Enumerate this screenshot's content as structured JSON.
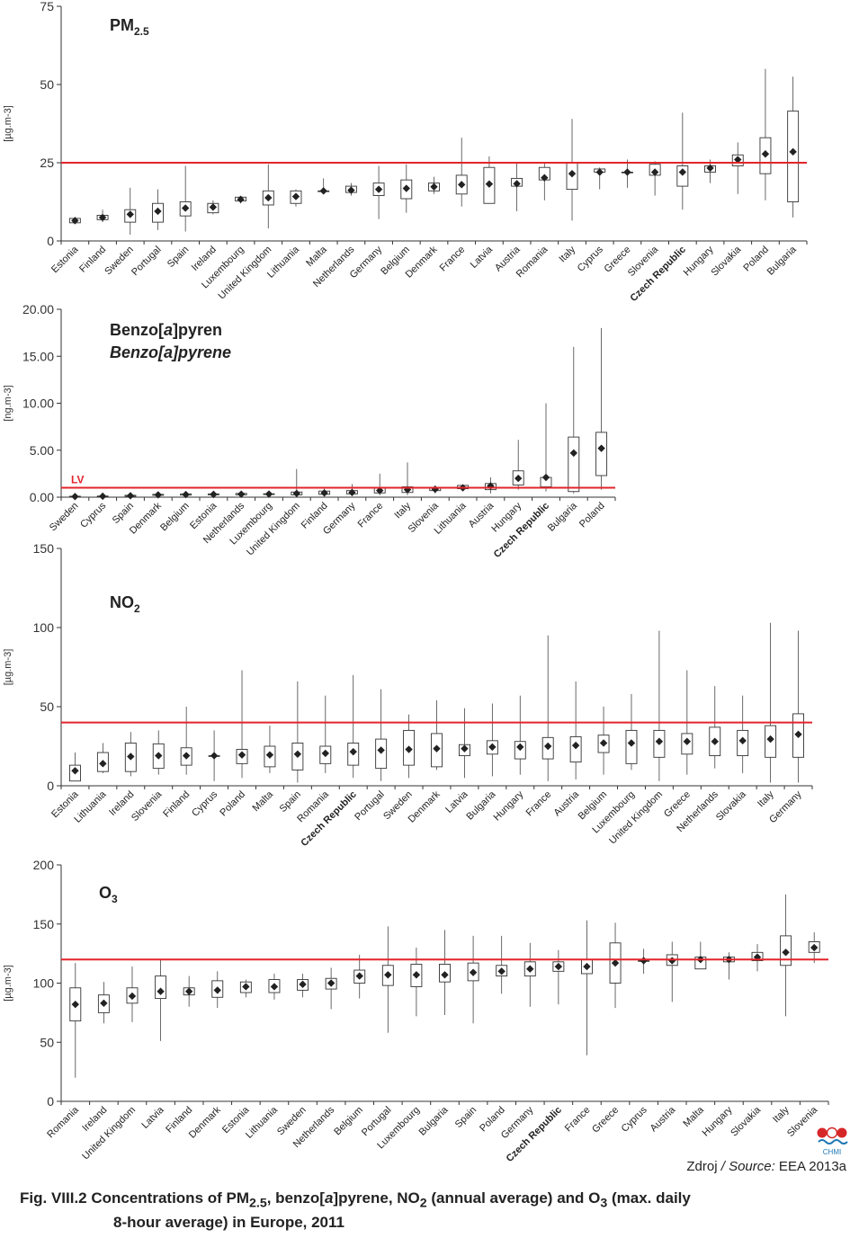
{
  "source": {
    "prefix": "Zdroj",
    "italic": " / Source:",
    "text": " EEA 2013a"
  },
  "caption": {
    "p1": "Fig. VIII.2  Concentrations of PM",
    "p1sub": "2.5",
    "p2": ", benzo[",
    "p2it": "a",
    "p3": "]pyrene, NO",
    "p3sub": "2",
    "p4": " (annual average) and O",
    "p4sub": "3",
    "p5": " (max. daily",
    "line2": "8-hour average) in Europe, 2011"
  },
  "logo": {
    "text": "CHMI",
    "colors": [
      "#d62728",
      "#1f77b4"
    ]
  },
  "limit_color": "#e3242b",
  "chart_data": [
    {
      "type": "box",
      "title": {
        "main": "PM",
        "sub": "2.5"
      },
      "ylabel": "[µg.m-3]",
      "ylim": [
        0,
        75
      ],
      "yticks": [
        0,
        25,
        50,
        75
      ],
      "tick_format": "int",
      "limit_value": 25,
      "highlight": "Czech Republic",
      "boxes": [
        {
          "c": "Estonia",
          "min": 5.5,
          "q1": 5.8,
          "mean": 6.5,
          "q3": 7.2,
          "max": 7.5
        },
        {
          "c": "Finland",
          "min": 6,
          "q1": 6.8,
          "mean": 7.5,
          "q3": 8.2,
          "max": 10
        },
        {
          "c": "Sweden",
          "min": 2,
          "q1": 6,
          "mean": 8.5,
          "q3": 10,
          "max": 17
        },
        {
          "c": "Portugal",
          "min": 3.5,
          "q1": 6,
          "mean": 9.5,
          "q3": 12,
          "max": 16.5
        },
        {
          "c": "Spain",
          "min": 3,
          "q1": 8,
          "mean": 10.5,
          "q3": 12.5,
          "max": 24
        },
        {
          "c": "Ireland",
          "min": 8.5,
          "q1": 9,
          "mean": 10.8,
          "q3": 12,
          "max": 13
        },
        {
          "c": "Luxembourg",
          "min": 12,
          "q1": 12.8,
          "mean": 13.3,
          "q3": 14,
          "max": 14.3
        },
        {
          "c": "United Kingdom",
          "min": 4,
          "q1": 11.5,
          "mean": 13.8,
          "q3": 16,
          "max": 24.5
        },
        {
          "c": "Lithuania",
          "min": 11,
          "q1": 12,
          "mean": 14.2,
          "q3": 16,
          "max": 16.5
        },
        {
          "c": "Malta",
          "min": 16,
          "q1": 16,
          "mean": 16,
          "q3": 16,
          "max": 20
        },
        {
          "c": "Netherlands",
          "min": 14.5,
          "q1": 15.5,
          "mean": 16.2,
          "q3": 17.5,
          "max": 18.5
        },
        {
          "c": "Germany",
          "min": 7,
          "q1": 14.5,
          "mean": 16.5,
          "q3": 18.5,
          "max": 24
        },
        {
          "c": "Belgium",
          "min": 9,
          "q1": 13.5,
          "mean": 16.8,
          "q3": 19.5,
          "max": 24.5
        },
        {
          "c": "Denmark",
          "min": 15,
          "q1": 16,
          "mean": 17.3,
          "q3": 18.5,
          "max": 20.5
        },
        {
          "c": "France",
          "min": 11,
          "q1": 15,
          "mean": 18,
          "q3": 21,
          "max": 33
        },
        {
          "c": "Latvia",
          "min": 12,
          "q1": 12,
          "mean": 18.2,
          "q3": 23.5,
          "max": 27
        },
        {
          "c": "Austria",
          "min": 9.5,
          "q1": 17.5,
          "mean": 18.3,
          "q3": 20,
          "max": 25
        },
        {
          "c": "Romania",
          "min": 13,
          "q1": 19.5,
          "mean": 20.2,
          "q3": 23.5,
          "max": 25
        },
        {
          "c": "Italy",
          "min": 6.5,
          "q1": 16.5,
          "mean": 21.5,
          "q3": 25,
          "max": 39
        },
        {
          "c": "Cyprus",
          "min": 16.5,
          "q1": 22,
          "mean": 22,
          "q3": 23,
          "max": 23.5
        },
        {
          "c": "Greece",
          "min": 17,
          "q1": 22,
          "mean": 22,
          "q3": 22,
          "max": 26
        },
        {
          "c": "Slovenia",
          "min": 14.5,
          "q1": 21,
          "mean": 22,
          "q3": 24.5,
          "max": 25.5
        },
        {
          "c": "Czech Republic",
          "min": 10,
          "q1": 17.5,
          "mean": 22,
          "q3": 24,
          "max": 41
        },
        {
          "c": "Hungary",
          "min": 18.5,
          "q1": 22,
          "mean": 23.3,
          "q3": 24,
          "max": 26
        },
        {
          "c": "Slovakia",
          "min": 15,
          "q1": 24,
          "mean": 26,
          "q3": 27.5,
          "max": 31.5
        },
        {
          "c": "Poland",
          "min": 13,
          "q1": 21.5,
          "mean": 27.8,
          "q3": 33,
          "max": 55
        },
        {
          "c": "Bulgaria",
          "min": 7.5,
          "q1": 12.5,
          "mean": 28.5,
          "q3": 41.5,
          "max": 52.5
        }
      ]
    },
    {
      "type": "box",
      "title": {
        "main": "Benzo[",
        "mainIt": "a",
        "mainEnd": "]pyren",
        "subtitle": "Benzo[a]pyrene"
      },
      "ylabel": "[ng.m-3]",
      "ylim": [
        0,
        20
      ],
      "yticks": [
        0,
        5,
        10,
        15,
        20
      ],
      "tick_format": "2dp",
      "limit_value": 1,
      "limit_label": "LV",
      "highlight": "Czech Republic",
      "boxes": [
        {
          "c": "Sweden",
          "min": 0.05,
          "q1": 0.05,
          "mean": 0.07,
          "q3": 0.1,
          "max": 0.1
        },
        {
          "c": "Cyprus",
          "min": 0.05,
          "q1": 0.08,
          "mean": 0.1,
          "q3": 0.12,
          "max": 0.15
        },
        {
          "c": "Spain",
          "min": 0.05,
          "q1": 0.1,
          "mean": 0.15,
          "q3": 0.2,
          "max": 0.3
        },
        {
          "c": "Denmark",
          "min": 0.15,
          "q1": 0.2,
          "mean": 0.25,
          "q3": 0.3,
          "max": 0.35
        },
        {
          "c": "Belgium",
          "min": 0.15,
          "q1": 0.22,
          "mean": 0.28,
          "q3": 0.35,
          "max": 0.45
        },
        {
          "c": "Estonia",
          "min": 0.2,
          "q1": 0.25,
          "mean": 0.3,
          "q3": 0.35,
          "max": 0.4
        },
        {
          "c": "Netherlands",
          "min": 0.15,
          "q1": 0.25,
          "mean": 0.32,
          "q3": 0.4,
          "max": 0.65
        },
        {
          "c": "Luxembourg",
          "min": 0.25,
          "q1": 0.3,
          "mean": 0.33,
          "q3": 0.36,
          "max": 0.4
        },
        {
          "c": "United Kingdom",
          "min": 0.1,
          "q1": 0.25,
          "mean": 0.4,
          "q3": 0.55,
          "max": 3
        },
        {
          "c": "Finland",
          "min": 0.15,
          "q1": 0.3,
          "mean": 0.45,
          "q3": 0.65,
          "max": 0.9
        },
        {
          "c": "Germany",
          "min": 0.15,
          "q1": 0.35,
          "mean": 0.5,
          "q3": 0.7,
          "max": 1.4
        },
        {
          "c": "France",
          "min": 0.2,
          "q1": 0.45,
          "mean": 0.7,
          "q3": 1.05,
          "max": 2.5
        },
        {
          "c": "Italy",
          "min": 0.2,
          "q1": 0.5,
          "mean": 0.8,
          "q3": 1.1,
          "max": 3.7
        },
        {
          "c": "Slovenia",
          "min": 0.4,
          "q1": 0.7,
          "mean": 0.85,
          "q3": 1,
          "max": 1.2
        },
        {
          "c": "Lithuania",
          "min": 0.8,
          "q1": 0.9,
          "mean": 1,
          "q3": 1.25,
          "max": 1.3
        },
        {
          "c": "Austria",
          "min": 0.4,
          "q1": 0.8,
          "mean": 1.2,
          "q3": 1.45,
          "max": 2.1
        },
        {
          "c": "Hungary",
          "min": 0.8,
          "q1": 1.3,
          "mean": 2,
          "q3": 2.8,
          "max": 6.1
        },
        {
          "c": "Czech Republic",
          "min": 0.6,
          "q1": 1.1,
          "mean": 2.1,
          "q3": 2.1,
          "max": 10
        },
        {
          "c": "Bulgaria",
          "min": 0.4,
          "q1": 0.6,
          "mean": 4.7,
          "q3": 6.4,
          "max": 16
        },
        {
          "c": "Poland",
          "min": 0.8,
          "q1": 2.3,
          "mean": 5.2,
          "q3": 6.9,
          "max": 18
        }
      ]
    },
    {
      "type": "box",
      "title": {
        "main": "NO",
        "sub": "2"
      },
      "ylabel": "[µg.m-3]",
      "ylim": [
        0,
        150
      ],
      "yticks": [
        0,
        50,
        100,
        150
      ],
      "tick_format": "int",
      "limit_value": 40,
      "highlight": "Czech Republic",
      "boxes": [
        {
          "c": "Estonia",
          "min": 3,
          "q1": 3,
          "mean": 9.5,
          "q3": 13,
          "max": 21
        },
        {
          "c": "Lithuania",
          "min": 8,
          "q1": 9,
          "mean": 14,
          "q3": 21,
          "max": 27
        },
        {
          "c": "Ireland",
          "min": 6,
          "q1": 9,
          "mean": 18.5,
          "q3": 27,
          "max": 34
        },
        {
          "c": "Slovenia",
          "min": 7,
          "q1": 11,
          "mean": 19,
          "q3": 26.5,
          "max": 35
        },
        {
          "c": "Finland",
          "min": 7,
          "q1": 13,
          "mean": 19,
          "q3": 24,
          "max": 50
        },
        {
          "c": "Cyprus",
          "min": 3,
          "q1": 19,
          "mean": 19,
          "q3": 19,
          "max": 35
        },
        {
          "c": "Poland",
          "min": 5,
          "q1": 14,
          "mean": 19.5,
          "q3": 23,
          "max": 73
        },
        {
          "c": "Malta",
          "min": 8,
          "q1": 12,
          "mean": 19.5,
          "q3": 25,
          "max": 38
        },
        {
          "c": "Spain",
          "min": 2,
          "q1": 10,
          "mean": 20,
          "q3": 27,
          "max": 66
        },
        {
          "c": "Romania",
          "min": 8,
          "q1": 14,
          "mean": 20.5,
          "q3": 25,
          "max": 57
        },
        {
          "c": "Czech Republic",
          "min": 5,
          "q1": 13,
          "mean": 21.5,
          "q3": 27,
          "max": 70
        },
        {
          "c": "Portugal",
          "min": 3,
          "q1": 11,
          "mean": 22.5,
          "q3": 29.5,
          "max": 61
        },
        {
          "c": "Sweden",
          "min": 5,
          "q1": 13,
          "mean": 23,
          "q3": 35,
          "max": 45
        },
        {
          "c": "Denmark",
          "min": 10,
          "q1": 12,
          "mean": 23.5,
          "q3": 33,
          "max": 54
        },
        {
          "c": "Latvia",
          "min": 5,
          "q1": 19,
          "mean": 23.5,
          "q3": 26,
          "max": 49
        },
        {
          "c": "Bulgaria",
          "min": 6,
          "q1": 20,
          "mean": 24.5,
          "q3": 28.5,
          "max": 52
        },
        {
          "c": "Hungary",
          "min": 7,
          "q1": 17,
          "mean": 24.5,
          "q3": 28,
          "max": 57
        },
        {
          "c": "France",
          "min": 3,
          "q1": 17,
          "mean": 25,
          "q3": 30.5,
          "max": 95
        },
        {
          "c": "Austria",
          "min": 4,
          "q1": 15,
          "mean": 25.5,
          "q3": 31,
          "max": 66
        },
        {
          "c": "Belgium",
          "min": 7,
          "q1": 21,
          "mean": 27,
          "q3": 32,
          "max": 50
        },
        {
          "c": "Luxembourg",
          "min": 10,
          "q1": 14,
          "mean": 27,
          "q3": 35,
          "max": 58
        },
        {
          "c": "United Kingdom",
          "min": 3,
          "q1": 18,
          "mean": 28,
          "q3": 35,
          "max": 98
        },
        {
          "c": "Greece",
          "min": 7,
          "q1": 20,
          "mean": 28,
          "q3": 33,
          "max": 73
        },
        {
          "c": "Netherlands",
          "min": 11,
          "q1": 19,
          "mean": 28,
          "q3": 37,
          "max": 63
        },
        {
          "c": "Slovakia",
          "min": 8,
          "q1": 19,
          "mean": 28.5,
          "q3": 35,
          "max": 57
        },
        {
          "c": "Italy",
          "min": 2,
          "q1": 18,
          "mean": 29.5,
          "q3": 38,
          "max": 103
        },
        {
          "c": "Germany",
          "min": 2,
          "q1": 18,
          "mean": 32.5,
          "q3": 45.5,
          "max": 98
        }
      ]
    },
    {
      "type": "box",
      "title": {
        "main": "O",
        "sub": "3"
      },
      "ylabel": "[µg.m-3]",
      "ylim": [
        0,
        200
      ],
      "yticks": [
        0,
        50,
        100,
        150,
        200
      ],
      "tick_format": "int",
      "limit_value": 120,
      "highlight": "Czech Republic",
      "boxes": [
        {
          "c": "Romania",
          "min": 20,
          "q1": 68,
          "mean": 82,
          "q3": 96,
          "max": 117
        },
        {
          "c": "Ireland",
          "min": 66,
          "q1": 75,
          "mean": 83,
          "q3": 90,
          "max": 101
        },
        {
          "c": "United Kingdom",
          "min": 67,
          "q1": 83,
          "mean": 89,
          "q3": 96,
          "max": 114
        },
        {
          "c": "Latvia",
          "min": 51,
          "q1": 87,
          "mean": 93,
          "q3": 106,
          "max": 120
        },
        {
          "c": "Finland",
          "min": 80,
          "q1": 90,
          "mean": 93,
          "q3": 96,
          "max": 106
        },
        {
          "c": "Denmark",
          "min": 79,
          "q1": 88,
          "mean": 94,
          "q3": 102,
          "max": 110
        },
        {
          "c": "Estonia",
          "min": 88,
          "q1": 92,
          "mean": 97,
          "q3": 101,
          "max": 103
        },
        {
          "c": "Lithuania",
          "min": 86,
          "q1": 92,
          "mean": 97,
          "q3": 103,
          "max": 108
        },
        {
          "c": "Sweden",
          "min": 88,
          "q1": 94,
          "mean": 99,
          "q3": 103,
          "max": 108
        },
        {
          "c": "Netherlands",
          "min": 78,
          "q1": 95,
          "mean": 100,
          "q3": 104,
          "max": 113
        },
        {
          "c": "Belgium",
          "min": 87,
          "q1": 100,
          "mean": 106,
          "q3": 111,
          "max": 124
        },
        {
          "c": "Portugal",
          "min": 58,
          "q1": 98,
          "mean": 107,
          "q3": 115,
          "max": 148
        },
        {
          "c": "Luxembourg",
          "min": 72,
          "q1": 97,
          "mean": 107,
          "q3": 116,
          "max": 130
        },
        {
          "c": "Bulgaria",
          "min": 73,
          "q1": 101,
          "mean": 107,
          "q3": 116,
          "max": 145
        },
        {
          "c": "Spain",
          "min": 66,
          "q1": 102,
          "mean": 109,
          "q3": 117,
          "max": 140
        },
        {
          "c": "Poland",
          "min": 91,
          "q1": 106,
          "mean": 110,
          "q3": 115,
          "max": 140
        },
        {
          "c": "Germany",
          "min": 80,
          "q1": 106,
          "mean": 112,
          "q3": 118,
          "max": 134
        },
        {
          "c": "Czech Republic",
          "min": 82,
          "q1": 110,
          "mean": 114,
          "q3": 118,
          "max": 128
        },
        {
          "c": "France",
          "min": 39,
          "q1": 108,
          "mean": 114,
          "q3": 120,
          "max": 153
        },
        {
          "c": "Greece",
          "min": 79,
          "q1": 100,
          "mean": 117,
          "q3": 134,
          "max": 151
        },
        {
          "c": "Cyprus",
          "min": 108,
          "q1": 119,
          "mean": 119,
          "q3": 119,
          "max": 129
        },
        {
          "c": "Austria",
          "min": 84,
          "q1": 115,
          "mean": 119,
          "q3": 124,
          "max": 135
        },
        {
          "c": "Malta",
          "min": 112,
          "q1": 112,
          "mean": 120,
          "q3": 122,
          "max": 135
        },
        {
          "c": "Hungary",
          "min": 103,
          "q1": 118,
          "mean": 120,
          "q3": 122,
          "max": 126
        },
        {
          "c": "Slovakia",
          "min": 110,
          "q1": 119,
          "mean": 122,
          "q3": 126,
          "max": 133
        },
        {
          "c": "Italy",
          "min": 72,
          "q1": 115,
          "mean": 126,
          "q3": 140,
          "max": 175
        },
        {
          "c": "Slovenia",
          "min": 117,
          "q1": 126,
          "mean": 130,
          "q3": 135,
          "max": 143
        }
      ]
    }
  ]
}
